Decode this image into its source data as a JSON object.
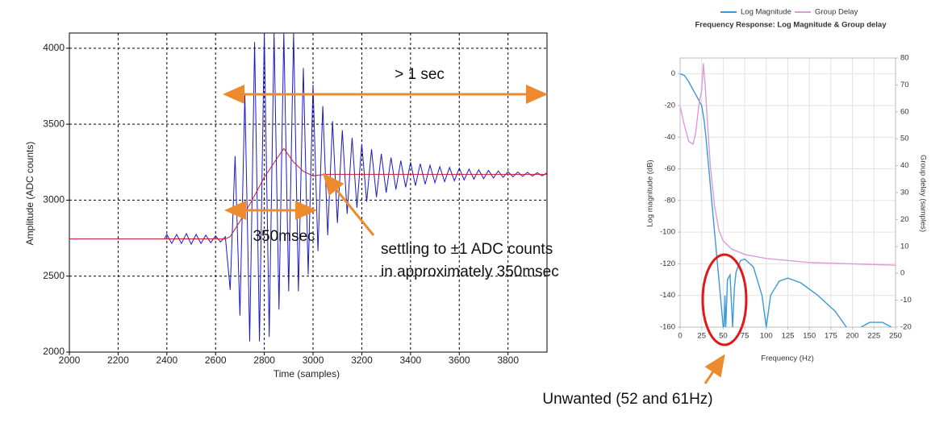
{
  "chart_data": [
    {
      "type": "line",
      "x_label": "Time (samples)",
      "y_label": "Amplitude (ADC counts)",
      "xlim": [
        2000,
        3960
      ],
      "xticks": [
        2000,
        2200,
        2400,
        2600,
        2800,
        3000,
        3200,
        3400,
        3600,
        3800
      ],
      "ylim": [
        2000,
        4100
      ],
      "yticks": [
        2000,
        2500,
        3000,
        3500,
        4000
      ],
      "grid": true,
      "grid_style": "dashed",
      "annotations": [
        "> 1 sec",
        "350msec",
        "settling to ±1 ADC counts",
        "in approximately 350msec"
      ],
      "series": [
        {
          "color": "#1a1acc",
          "x": [
            2000,
            2390,
            2400,
            2420,
            2440,
            2460,
            2480,
            2500,
            2520,
            2540,
            2560,
            2580,
            2600,
            2620,
            2640,
            2660,
            2680,
            2700,
            2720,
            2740,
            2760,
            2780,
            2800,
            2820,
            2840,
            2860,
            2880,
            2900,
            2920,
            2940,
            2960,
            2980,
            3000,
            3020,
            3040,
            3060,
            3080,
            3100,
            3120,
            3140,
            3160,
            3180,
            3200,
            3220,
            3240,
            3260,
            3280,
            3300,
            3320,
            3340,
            3360,
            3380,
            3400,
            3420,
            3440,
            3460,
            3480,
            3500,
            3520,
            3540,
            3560,
            3580,
            3600,
            3620,
            3640,
            3660,
            3680,
            3700,
            3720,
            3740,
            3760,
            3780,
            3800,
            3820,
            3840,
            3860,
            3880,
            3900,
            3920,
            3940,
            3960
          ],
          "values": [
            2745,
            2745,
            2775,
            2715,
            2775,
            2715,
            2780,
            2710,
            2775,
            2715,
            2770,
            2720,
            2765,
            2725,
            2760,
            2410,
            3290,
            2240,
            3700,
            2070,
            4040,
            2070,
            4100,
            2100,
            4100,
            2280,
            4100,
            2400,
            4100,
            2400,
            3870,
            2510,
            3760,
            2665,
            3620,
            2770,
            3520,
            2850,
            3460,
            2910,
            3410,
            2950,
            3370,
            2990,
            3335,
            3020,
            3305,
            3050,
            3280,
            3070,
            3260,
            3085,
            3250,
            3095,
            3240,
            3105,
            3230,
            3115,
            3220,
            3122,
            3215,
            3128,
            3210,
            3133,
            3205,
            3138,
            3200,
            3142,
            3196,
            3146,
            3192,
            3150,
            3188,
            3154,
            3185,
            3156,
            3183,
            3158,
            3181,
            3160,
            3180
          ]
        },
        {
          "color": "#cc1a33",
          "x": [
            2000,
            2640,
            2660,
            2700,
            2750,
            2800,
            2850,
            2880,
            2920,
            2960,
            3000,
            3050,
            3200,
            3960
          ],
          "values": [
            2745,
            2745,
            2760,
            2860,
            3000,
            3150,
            3270,
            3340,
            3250,
            3190,
            3160,
            3170,
            3170,
            3170
          ]
        }
      ]
    },
    {
      "type": "line",
      "title": "Frequency Response: Log Magnitude & Group delay",
      "x_label": "Frequency (Hz)",
      "y_label": "Log magnitude (dB)",
      "y2_label": "Group delay (samples)",
      "xlim": [
        0,
        250
      ],
      "xticks": [
        0,
        25,
        50,
        75,
        100,
        125,
        150,
        175,
        200,
        225,
        250
      ],
      "ylim": [
        -160,
        10
      ],
      "yticks": [
        -160,
        -140,
        -120,
        -100,
        -80,
        -60,
        -40,
        -20,
        0
      ],
      "y2lim": [
        -20,
        80
      ],
      "y2ticks": [
        -20,
        -10,
        0,
        10,
        20,
        30,
        40,
        50,
        60,
        70,
        80
      ],
      "grid": true,
      "grid_style": "solid",
      "annotations": [
        "Unwanted (52 and 61Hz)"
      ],
      "series": [
        {
          "name": "Log Magnitude",
          "color": "#3a9ad9",
          "x": [
            0,
            5,
            10,
            15,
            20,
            25,
            28,
            30,
            35,
            40,
            45,
            50,
            51,
            52,
            53,
            55,
            58,
            61,
            63,
            65,
            70,
            75,
            85,
            95,
            100,
            105,
            115,
            125,
            140,
            160,
            180,
            193,
            200,
            210,
            220,
            235,
            245
          ],
          "values": [
            0,
            -1,
            -5,
            -10,
            -15,
            -20,
            -30,
            -40,
            -70,
            -100,
            -130,
            -160,
            -160,
            -140,
            -160,
            -130,
            -127,
            -160,
            -135,
            -125,
            -118,
            -117,
            -122,
            -140,
            -160,
            -140,
            -131,
            -129,
            -132,
            -140,
            -150,
            -160,
            null,
            -160,
            -157,
            -157,
            -160
          ]
        },
        {
          "name": "Group Delay",
          "color": "#dc9ad9",
          "axis": "y2",
          "x": [
            0,
            5,
            10,
            15,
            18,
            22,
            25,
            27,
            29,
            31,
            35,
            40,
            45,
            50,
            60,
            75,
            100,
            150,
            200,
            250
          ],
          "values": [
            62,
            55,
            49,
            48,
            52,
            63,
            68,
            78,
            70,
            60,
            40,
            25,
            16,
            12,
            9,
            7,
            5.5,
            4,
            3.5,
            3
          ]
        }
      ]
    }
  ]
}
